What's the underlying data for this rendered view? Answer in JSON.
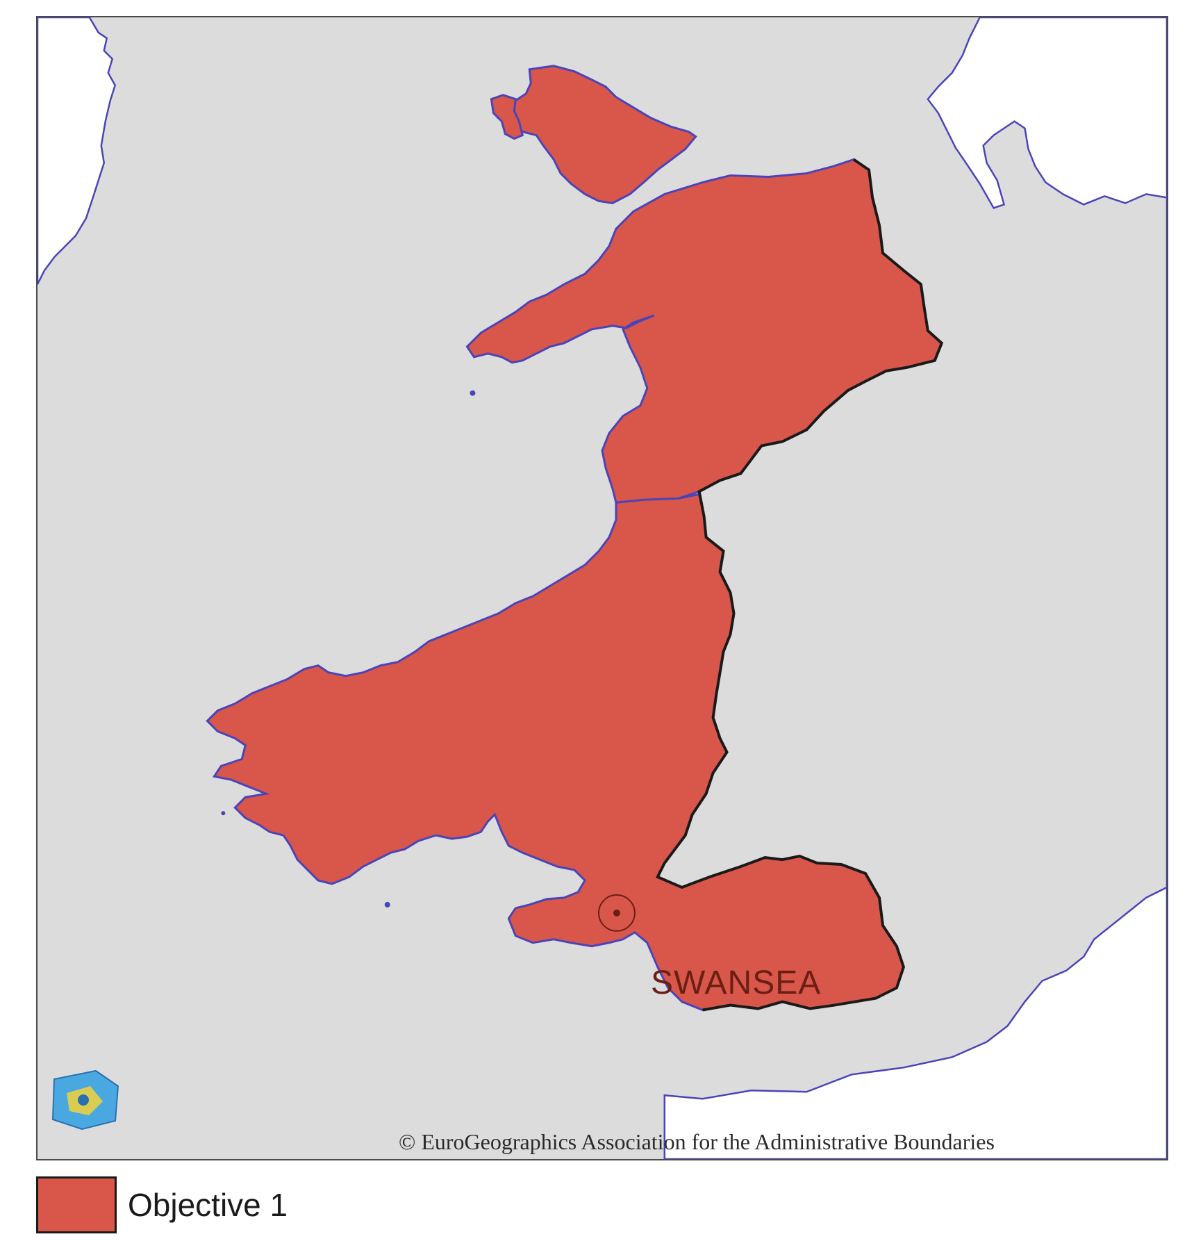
{
  "map": {
    "city_label": "SWANSEA",
    "copyright": "© EuroGeographics Association for the Administrative Boundaries",
    "colors": {
      "sea": "#dcdcdc",
      "land_other": "#ffffff",
      "objective_region": "#d8564a",
      "coastline": "#4a44b8",
      "border": "#1a1a1a"
    },
    "logo_icon": "eurogeographics-logo-icon"
  },
  "legend": {
    "items": [
      {
        "label": "Objective 1",
        "color": "#d8564a"
      }
    ]
  }
}
